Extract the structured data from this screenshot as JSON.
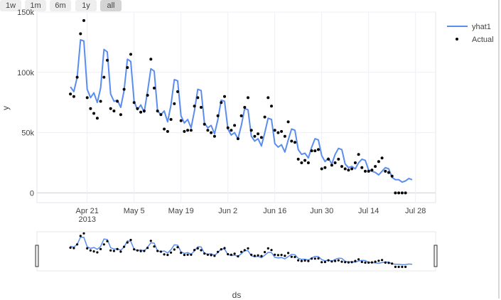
{
  "range_buttons": [
    {
      "label": "1w",
      "active": false
    },
    {
      "label": "1m",
      "active": false
    },
    {
      "label": "6m",
      "active": false
    },
    {
      "label": "1y",
      "active": false
    },
    {
      "label": "all",
      "active": true
    }
  ],
  "chart_data": {
    "type": "line",
    "xlabel": "ds",
    "ylabel": "y",
    "x_range": [
      "2013-04-06",
      "2013-08-03"
    ],
    "y_range": [
      -8000,
      150000
    ],
    "y_ticks": [
      {
        "value": 0,
        "label": "0"
      },
      {
        "value": 50000,
        "label": "50k"
      },
      {
        "value": 100000,
        "label": "100k"
      },
      {
        "value": 150000,
        "label": "150k"
      }
    ],
    "x_ticks": [
      {
        "date": "2013-04-21",
        "label": "Apr 21",
        "sublabel": "2013"
      },
      {
        "date": "2013-05-05",
        "label": "May 5",
        "sublabel": ""
      },
      {
        "date": "2013-05-19",
        "label": "May 19",
        "sublabel": ""
      },
      {
        "date": "2013-06-02",
        "label": "Jun 2",
        "sublabel": ""
      },
      {
        "date": "2013-06-16",
        "label": "Jun 16",
        "sublabel": ""
      },
      {
        "date": "2013-06-30",
        "label": "Jun 30",
        "sublabel": ""
      },
      {
        "date": "2013-07-14",
        "label": "Jul 14",
        "sublabel": ""
      },
      {
        "date": "2013-07-28",
        "label": "Jul 28",
        "sublabel": ""
      }
    ],
    "grid": true,
    "legend_position": "top-right",
    "start_date": "2013-04-16",
    "series": [
      {
        "name": "yhat1",
        "kind": "line",
        "color": "#5b8def",
        "values": [
          88000,
          84000,
          96000,
          127000,
          126000,
          86000,
          79000,
          83000,
          75000,
          87000,
          119000,
          117000,
          82000,
          76000,
          77000,
          71000,
          85000,
          111000,
          109000,
          76000,
          69000,
          73000,
          67000,
          84000,
          103000,
          101000,
          68000,
          65000,
          68000,
          59000,
          73000,
          94000,
          93000,
          64000,
          58000,
          61000,
          54000,
          68000,
          86000,
          85000,
          58000,
          54000,
          56000,
          49000,
          61000,
          77000,
          76000,
          53000,
          48000,
          50000,
          45000,
          56000,
          70000,
          69000,
          47000,
          43000,
          45000,
          39000,
          50000,
          62000,
          61000,
          41000,
          38000,
          40000,
          34000,
          44000,
          53000,
          52000,
          36000,
          32000,
          33000,
          29000,
          38000,
          45000,
          44000,
          31000,
          26000,
          29000,
          24000,
          32000,
          37000,
          36000,
          24000,
          21000,
          22000,
          20000,
          25000,
          28000,
          27000,
          19000,
          18000,
          17000,
          15000,
          18000,
          21000,
          20000,
          13000,
          11000,
          11000,
          9000,
          10000,
          12000,
          11000
        ]
      },
      {
        "name": "Actual",
        "kind": "markers",
        "color": "#000000",
        "values": [
          82000,
          80000,
          96000,
          132000,
          143000,
          79000,
          70000,
          66000,
          62000,
          76000,
          96000,
          110000,
          70000,
          68000,
          76000,
          65000,
          86000,
          104000,
          115000,
          75000,
          70000,
          67000,
          68000,
          81000,
          111000,
          87000,
          68000,
          65000,
          53000,
          51000,
          61000,
          74000,
          84000,
          60000,
          51000,
          52000,
          52000,
          72000,
          79000,
          71000,
          57000,
          52000,
          50000,
          47000,
          64000,
          75000,
          80000,
          54000,
          52000,
          56000,
          45000,
          64000,
          71000,
          79000,
          52000,
          47000,
          49000,
          46000,
          63000,
          79000,
          72000,
          52000,
          50000,
          51000,
          47000,
          59000,
          43000,
          42000,
          28000,
          25000,
          27000,
          25000,
          35000,
          35000,
          36000,
          20000,
          21000,
          28000,
          23000,
          25000,
          28000,
          22000,
          20000,
          19000,
          20000,
          25000,
          32000,
          21000,
          18000,
          18000,
          19000,
          22000,
          26000,
          29000,
          18000,
          17000,
          14000,
          0,
          0,
          0,
          0
        ]
      }
    ]
  }
}
